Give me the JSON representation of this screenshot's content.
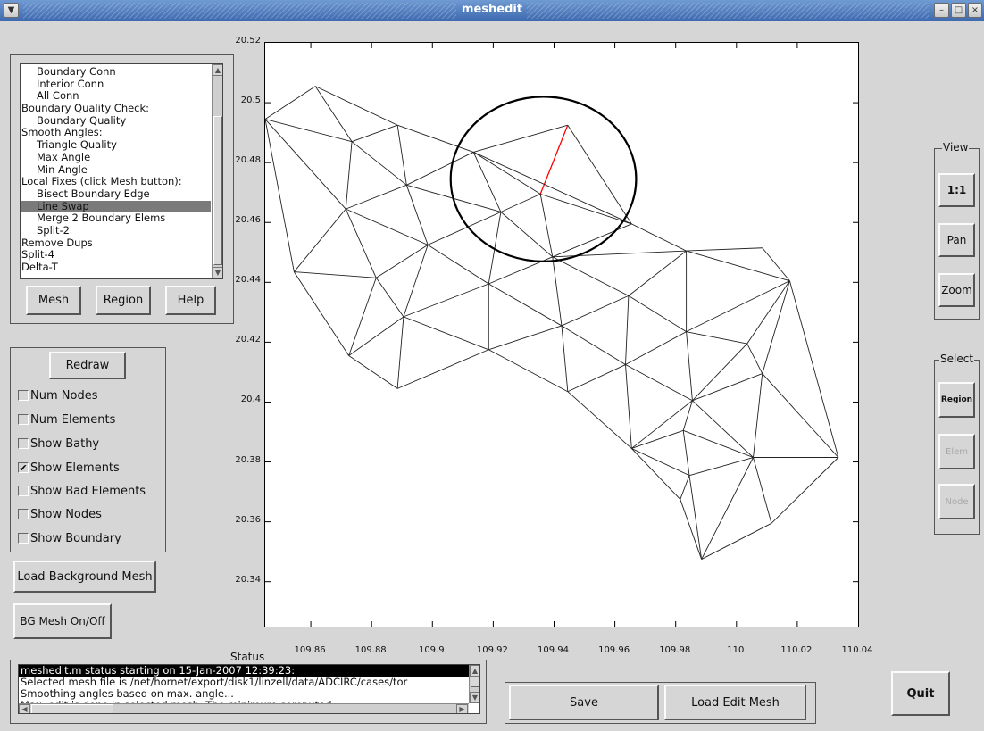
{
  "window": {
    "title": "meshedit"
  },
  "menu_list": {
    "items": [
      "Boundary Conn",
      "Interior Conn",
      "All Conn",
      "Boundary Quality Check:",
      "Boundary Quality",
      "Smooth Angles:",
      "Triangle Quality",
      "Max Angle",
      "Min Angle",
      "Local Fixes (click Mesh button):",
      "Bisect Boundary Edge",
      "Line Swap",
      "Merge 2 Boundary Elems",
      "Split-2",
      "Remove Dups",
      "Split-4",
      "Delta-T"
    ],
    "selected": "Line Swap"
  },
  "menu_buttons": {
    "mesh": "Mesh",
    "region": "Region",
    "help": "Help"
  },
  "display_options": {
    "redraw": "Redraw",
    "num_nodes": {
      "label": "Num Nodes",
      "checked": false
    },
    "num_elements": {
      "label": "Num Elements",
      "checked": false
    },
    "show_bathy": {
      "label": "Show Bathy",
      "checked": false
    },
    "show_elements": {
      "label": "Show Elements",
      "checked": true
    },
    "show_bad_elements": {
      "label": "Show Bad Elements",
      "checked": false
    },
    "show_nodes": {
      "label": "Show Nodes",
      "checked": false
    },
    "show_boundary": {
      "label": "Show Boundary",
      "checked": false
    }
  },
  "load_background_mesh": "Load Background Mesh",
  "bg_mesh_toggle": "BG Mesh On/Off",
  "view_group": {
    "label": "View",
    "one_to_one": "1:1",
    "pan": "Pan",
    "zoom": "Zoom"
  },
  "select_group": {
    "label": "Select",
    "region": "Region",
    "elem": "Elem",
    "node": "Node"
  },
  "status": {
    "label": "Status",
    "lines": [
      "meshedit.m status starting on 15-Jan-2007 12:39:23:",
      "Selected mesh file is /net/hornet/export/disk1/linzell/data/ADCIRC/cases/tor",
      "Smoothing angles based on max. angle...",
      "Max. edit is done in selected mesh. The minimum computed"
    ]
  },
  "actions": {
    "save": "Save",
    "load_edit_mesh": "Load Edit Mesh",
    "quit": "Quit"
  },
  "colors": {
    "selection": "#7a7a7a",
    "swap_edge": "#ff0000",
    "plot_bg": "#ffffff",
    "panel_bg": "#d6d6d6"
  },
  "chart_data": {
    "type": "mesh",
    "xlim": [
      109.845,
      110.04
    ],
    "ylim": [
      20.325,
      20.52
    ],
    "x_ticks": [
      "109.86",
      "109.88",
      "109.9",
      "109.92",
      "109.94",
      "109.96",
      "109.98",
      "110",
      "110.02",
      "110.04"
    ],
    "y_ticks": [
      "20.52",
      "20.5",
      "20.48",
      "20.46",
      "20.44",
      "20.42",
      "20.4",
      "20.38",
      "20.36",
      "20.34"
    ],
    "nodes": [
      [
        109.845,
        20.4945
      ],
      [
        109.8615,
        20.5055
      ],
      [
        109.8735,
        20.487
      ],
      [
        109.8885,
        20.4925
      ],
      [
        109.9135,
        20.4835
      ],
      [
        109.9445,
        20.4925
      ],
      [
        109.9355,
        20.4695
      ],
      [
        109.9655,
        20.4595
      ],
      [
        109.9225,
        20.4635
      ],
      [
        109.8915,
        20.4725
      ],
      [
        109.8715,
        20.4645
      ],
      [
        109.8985,
        20.4525
      ],
      [
        109.8545,
        20.4435
      ],
      [
        109.8815,
        20.4415
      ],
      [
        109.9185,
        20.4395
      ],
      [
        109.9395,
        20.4485
      ],
      [
        109.8905,
        20.4285
      ],
      [
        109.8725,
        20.4155
      ],
      [
        109.8885,
        20.4045
      ],
      [
        109.9185,
        20.4175
      ],
      [
        109.9425,
        20.4255
      ],
      [
        109.9645,
        20.4355
      ],
      [
        109.9835,
        20.4505
      ],
      [
        110.0085,
        20.4515
      ],
      [
        110.0175,
        20.4405
      ],
      [
        109.9635,
        20.4125
      ],
      [
        109.9835,
        20.4235
      ],
      [
        109.9445,
        20.4035
      ],
      [
        110.0035,
        20.4195
      ],
      [
        110.0085,
        20.4095
      ],
      [
        109.9855,
        20.4005
      ],
      [
        109.9655,
        20.3845
      ],
      [
        109.9825,
        20.3905
      ],
      [
        110.0055,
        20.3815
      ],
      [
        110.0335,
        20.3815
      ],
      [
        109.9845,
        20.3755
      ],
      [
        109.9815,
        20.3675
      ],
      [
        109.9885,
        20.3475
      ],
      [
        110.0115,
        20.3595
      ]
    ],
    "elements": [
      [
        0,
        1,
        2
      ],
      [
        1,
        3,
        2
      ],
      [
        0,
        2,
        10
      ],
      [
        2,
        3,
        9
      ],
      [
        2,
        9,
        10
      ],
      [
        3,
        4,
        9
      ],
      [
        4,
        8,
        9
      ],
      [
        4,
        6,
        8
      ],
      [
        4,
        5,
        6
      ],
      [
        5,
        7,
        6
      ],
      [
        4,
        7,
        6
      ],
      [
        0,
        10,
        12
      ],
      [
        9,
        8,
        11
      ],
      [
        9,
        11,
        10
      ],
      [
        10,
        11,
        13
      ],
      [
        10,
        13,
        12
      ],
      [
        8,
        6,
        15
      ],
      [
        8,
        15,
        14
      ],
      [
        8,
        14,
        11
      ],
      [
        6,
        7,
        15
      ],
      [
        11,
        14,
        16
      ],
      [
        11,
        16,
        13
      ],
      [
        12,
        13,
        17
      ],
      [
        13,
        16,
        17
      ],
      [
        7,
        22,
        15
      ],
      [
        15,
        22,
        21
      ],
      [
        15,
        21,
        20
      ],
      [
        15,
        20,
        14
      ],
      [
        14,
        20,
        19
      ],
      [
        14,
        19,
        16
      ],
      [
        16,
        19,
        18
      ],
      [
        16,
        18,
        17
      ],
      [
        22,
        23,
        24
      ],
      [
        22,
        24,
        26
      ],
      [
        22,
        26,
        21
      ],
      [
        21,
        26,
        25
      ],
      [
        21,
        25,
        20
      ],
      [
        20,
        25,
        27
      ],
      [
        20,
        27,
        19
      ],
      [
        24,
        28,
        26
      ],
      [
        24,
        34,
        29
      ],
      [
        24,
        29,
        28
      ],
      [
        26,
        28,
        30
      ],
      [
        26,
        30,
        25
      ],
      [
        25,
        30,
        31
      ],
      [
        25,
        31,
        27
      ],
      [
        28,
        29,
        30
      ],
      [
        29,
        33,
        30
      ],
      [
        29,
        34,
        33
      ],
      [
        30,
        33,
        32
      ],
      [
        30,
        32,
        31
      ],
      [
        31,
        32,
        35
      ],
      [
        32,
        33,
        35
      ],
      [
        31,
        35,
        36
      ],
      [
        35,
        33,
        37
      ],
      [
        36,
        35,
        37
      ],
      [
        33,
        38,
        37
      ],
      [
        33,
        34,
        38
      ]
    ],
    "highlight_edge": [
      5,
      6
    ],
    "selection_circle": {
      "center": [
        109.9365,
        20.4745
      ],
      "radius_x": 0.0305,
      "radius_y": 0.0275
    }
  }
}
